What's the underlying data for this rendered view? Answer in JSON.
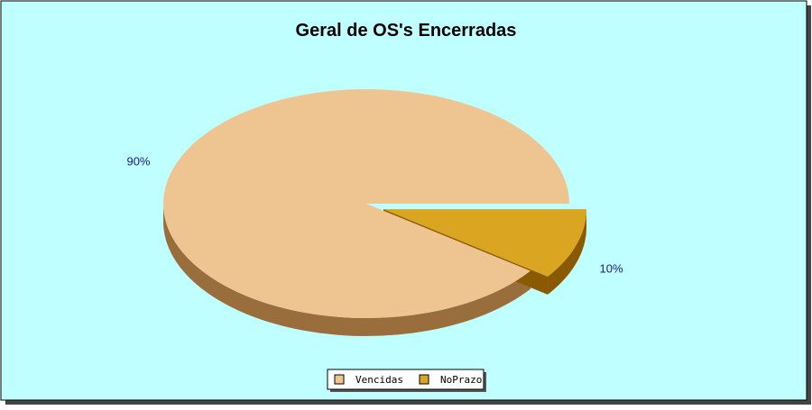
{
  "chart_data": {
    "type": "pie",
    "title": "Geral de OS's Encerradas",
    "slices": [
      {
        "name": "Vencidas",
        "value": 90,
        "label": "90%",
        "color": "#EEC591",
        "side_color": "#9A6E3C"
      },
      {
        "name": "NoPrazo",
        "value": 10,
        "label": "10%",
        "color": "#DAA520",
        "side_color": "#8B5A00"
      }
    ],
    "three_d": true,
    "exploded_slice": "NoPrazo",
    "legend_position": "bottom-center",
    "background_color": "#BFFFFF",
    "label_color": "#1A1A8C"
  }
}
